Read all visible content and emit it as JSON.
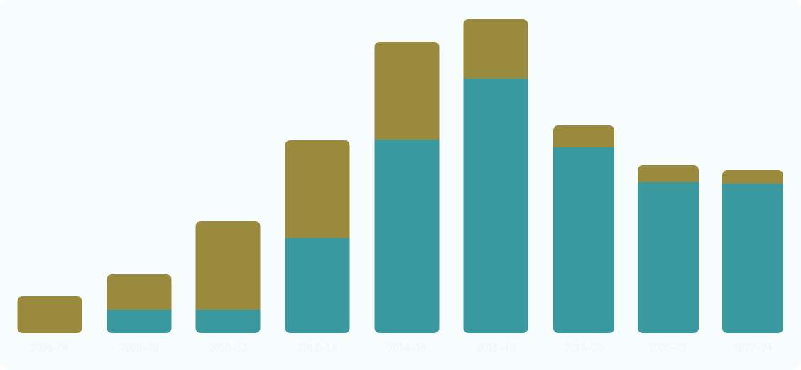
{
  "chart_data": {
    "type": "bar",
    "stacked": true,
    "categories": [
      "2006–08",
      "2008–10",
      "2010–12",
      "2012–14",
      "2014–16",
      "2016–18",
      "2018–20",
      "2020–22",
      "2022–24"
    ],
    "series": [
      {
        "values": [
          0,
          33,
          33,
          134,
          273,
          359,
          262,
          213,
          211
        ]
      },
      {
        "values": [
          52,
          50,
          125,
          138,
          138,
          84,
          31,
          24,
          19
        ]
      }
    ],
    "ylim": [
      0,
      445
    ],
    "grid": false,
    "legend": "none",
    "colors": {
      "series": [
        "#3a999e",
        "#9a8a3e"
      ],
      "background": "#f7fcfc",
      "tick_label": "#eef6f6"
    }
  }
}
